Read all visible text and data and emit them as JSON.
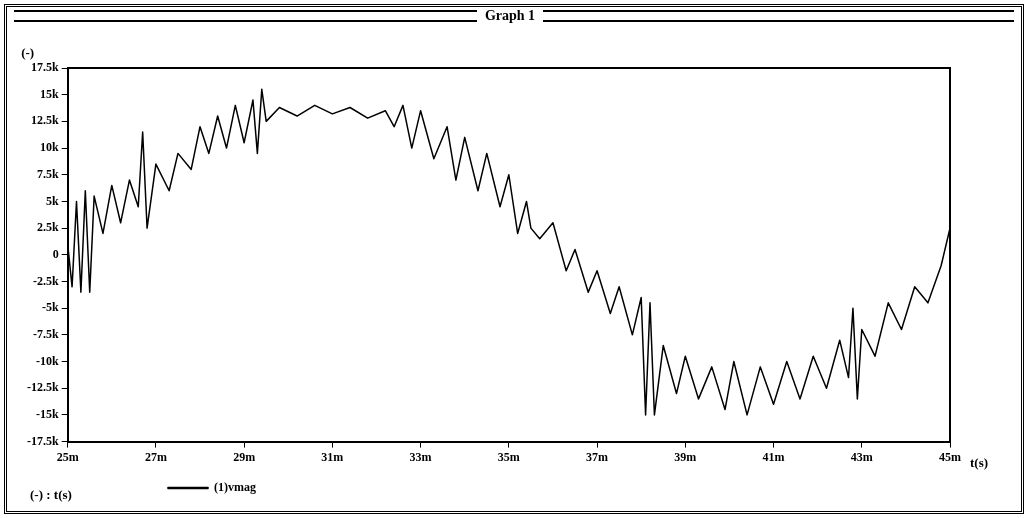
{
  "chart_data": {
    "type": "line",
    "title": "Graph 1",
    "ylabel": "(-)",
    "xlabel": "t(s)",
    "annotations": [
      "(-) : t(s)"
    ],
    "legend": "bottom left",
    "grid": false,
    "marker": "none",
    "line_style": "solid",
    "xlim": [
      25,
      45
    ],
    "xticks": [
      {
        "value": 25,
        "label": "25m"
      },
      {
        "value": 27,
        "label": "27m"
      },
      {
        "value": 29,
        "label": "29m"
      },
      {
        "value": 31,
        "label": "31m"
      },
      {
        "value": 33,
        "label": "33m"
      },
      {
        "value": 35,
        "label": "35m"
      },
      {
        "value": 37,
        "label": "37m"
      },
      {
        "value": 39,
        "label": "39m"
      },
      {
        "value": 41,
        "label": "41m"
      },
      {
        "value": 43,
        "label": "43m"
      },
      {
        "value": 45,
        "label": "45m"
      }
    ],
    "ylim": [
      -17500,
      17500
    ],
    "yticks": [
      {
        "value": 17500,
        "label": "17.5k"
      },
      {
        "value": 15000,
        "label": "15k"
      },
      {
        "value": 12500,
        "label": "12.5k"
      },
      {
        "value": 10000,
        "label": "10k"
      },
      {
        "value": 7500,
        "label": "7.5k"
      },
      {
        "value": 5000,
        "label": "5k"
      },
      {
        "value": 2500,
        "label": "2.5k"
      },
      0,
      {
        "value": -2500,
        "label": "-2.5k"
      },
      {
        "value": -5000,
        "label": "-5k"
      },
      {
        "value": -7500,
        "label": "-7.5k"
      },
      {
        "value": -10000,
        "label": "-10k"
      },
      {
        "value": -12500,
        "label": "-12.5k"
      },
      {
        "value": -15000,
        "label": "-15k"
      },
      {
        "value": -17500,
        "label": "-17.5k"
      }
    ],
    "series": [
      {
        "name": "(1)vmag",
        "color": "#000000",
        "x": [
          25,
          25.1,
          25.2,
          25.3,
          25.4,
          25.5,
          25.6,
          25.8,
          26,
          26.2,
          26.4,
          26.6,
          26.7,
          26.8,
          27,
          27.3,
          27.5,
          27.8,
          28,
          28.2,
          28.4,
          28.6,
          28.8,
          29,
          29.2,
          29.3,
          29.4,
          29.5,
          29.8,
          30.2,
          30.6,
          31,
          31.4,
          31.8,
          32.2,
          32.4,
          32.6,
          32.8,
          33,
          33.3,
          33.6,
          33.8,
          34,
          34.3,
          34.5,
          34.8,
          35,
          35.2,
          35.4,
          35.5,
          35.7,
          36,
          36.3,
          36.5,
          36.8,
          37,
          37.3,
          37.5,
          37.8,
          38,
          38.1,
          38.2,
          38.3,
          38.5,
          38.8,
          39,
          39.3,
          39.6,
          39.9,
          40.1,
          40.4,
          40.7,
          41,
          41.3,
          41.6,
          41.9,
          42.2,
          42.5,
          42.7,
          42.8,
          42.9,
          43,
          43.3,
          43.6,
          43.9,
          44.2,
          44.5,
          44.8,
          45
        ],
        "values": [
          1000,
          -3000,
          5000,
          -3500,
          6000,
          -3500,
          5500,
          2000,
          6500,
          3000,
          7000,
          4500,
          11500,
          2500,
          8500,
          6000,
          9500,
          8000,
          12000,
          9500,
          13000,
          10000,
          14000,
          10500,
          14500,
          9500,
          15500,
          12500,
          13800,
          13000,
          14000,
          13200,
          13800,
          12800,
          13500,
          12000,
          14000,
          10000,
          13500,
          9000,
          12000,
          7000,
          11000,
          6000,
          9500,
          4500,
          7500,
          2000,
          5000,
          2500,
          1500,
          3000,
          -1500,
          500,
          -3500,
          -1500,
          -5500,
          -3000,
          -7500,
          -4000,
          -15000,
          -4500,
          -15000,
          -8500,
          -13000,
          -9500,
          -13500,
          -10500,
          -14500,
          -10000,
          -15000,
          -10500,
          -14000,
          -10000,
          -13500,
          -9500,
          -12500,
          -8000,
          -11500,
          -5000,
          -13500,
          -7000,
          -9500,
          -4500,
          -7000,
          -3000,
          -4500,
          -1000,
          2500
        ]
      }
    ]
  }
}
